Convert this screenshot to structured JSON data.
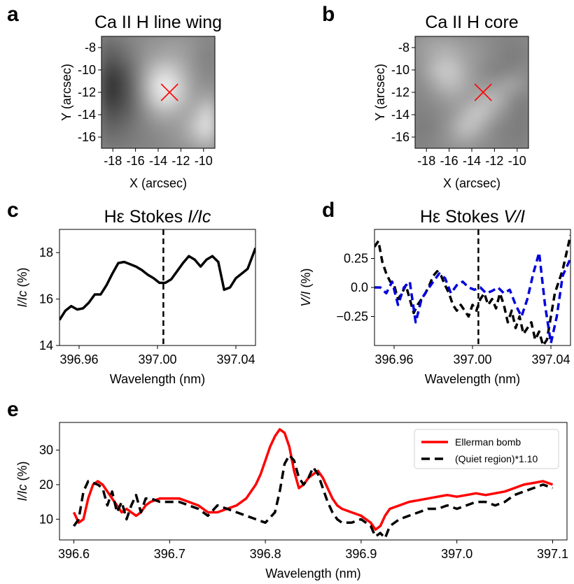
{
  "colors": {
    "red": "#ff0000",
    "blue": "#0000dd",
    "black": "#000000"
  },
  "chart_data": [
    {
      "panel": "a",
      "type": "heatmap",
      "title": "Ca II H line wing",
      "xlabel": "X (arcsec)",
      "ylabel": "Y (arcsec)",
      "xticks": [
        -18,
        -16,
        -14,
        -12,
        -10
      ],
      "yticks": [
        -8,
        -10,
        -12,
        -14,
        -16
      ],
      "xlim": [
        -19,
        -9
      ],
      "ylim": [
        -17,
        -7
      ],
      "marker": {
        "x": -13,
        "y": -12,
        "symbol": "x",
        "color": "#ff0000"
      },
      "grid": [
        [
          0.42,
          0.45,
          0.5,
          0.55,
          0.58,
          0.6,
          0.62,
          0.6,
          0.56,
          0.52
        ],
        [
          0.35,
          0.38,
          0.45,
          0.55,
          0.62,
          0.66,
          0.66,
          0.62,
          0.55,
          0.5
        ],
        [
          0.25,
          0.28,
          0.38,
          0.55,
          0.72,
          0.82,
          0.78,
          0.66,
          0.56,
          0.52
        ],
        [
          0.2,
          0.22,
          0.34,
          0.55,
          0.8,
          0.96,
          0.88,
          0.7,
          0.58,
          0.56
        ],
        [
          0.22,
          0.24,
          0.35,
          0.52,
          0.75,
          0.9,
          0.84,
          0.7,
          0.62,
          0.68
        ],
        [
          0.3,
          0.32,
          0.38,
          0.5,
          0.62,
          0.7,
          0.68,
          0.64,
          0.72,
          0.85
        ],
        [
          0.38,
          0.4,
          0.44,
          0.5,
          0.55,
          0.58,
          0.6,
          0.66,
          0.8,
          0.9
        ],
        [
          0.45,
          0.45,
          0.48,
          0.5,
          0.52,
          0.55,
          0.58,
          0.62,
          0.7,
          0.75
        ]
      ]
    },
    {
      "panel": "b",
      "type": "heatmap",
      "title": "Ca II H core",
      "xlabel": "X (arcsec)",
      "ylabel": "Y (arcsec)",
      "xticks": [
        -18,
        -16,
        -14,
        -12,
        -10
      ],
      "yticks": [
        -8,
        -10,
        -12,
        -14,
        -16
      ],
      "xlim": [
        -19,
        -9
      ],
      "ylim": [
        -17,
        -7
      ],
      "marker": {
        "x": -13,
        "y": -12,
        "symbol": "x",
        "color": "#ff0000"
      },
      "grid": [
        [
          0.62,
          0.64,
          0.66,
          0.64,
          0.6,
          0.58,
          0.55,
          0.52,
          0.5,
          0.52
        ],
        [
          0.6,
          0.66,
          0.72,
          0.7,
          0.64,
          0.6,
          0.55,
          0.52,
          0.48,
          0.5
        ],
        [
          0.58,
          0.7,
          0.8,
          0.78,
          0.66,
          0.58,
          0.52,
          0.5,
          0.52,
          0.55
        ],
        [
          0.55,
          0.62,
          0.72,
          0.74,
          0.66,
          0.6,
          0.58,
          0.62,
          0.66,
          0.58
        ],
        [
          0.52,
          0.56,
          0.6,
          0.64,
          0.62,
          0.66,
          0.74,
          0.7,
          0.56,
          0.5
        ],
        [
          0.5,
          0.52,
          0.55,
          0.6,
          0.7,
          0.8,
          0.72,
          0.6,
          0.52,
          0.48
        ],
        [
          0.48,
          0.5,
          0.55,
          0.65,
          0.78,
          0.72,
          0.6,
          0.52,
          0.5,
          0.48
        ],
        [
          0.5,
          0.52,
          0.56,
          0.62,
          0.65,
          0.6,
          0.55,
          0.52,
          0.5,
          0.5
        ]
      ]
    },
    {
      "panel": "c",
      "type": "line",
      "title_prefix": "Hε Stokes ",
      "title_italic": "I/Ic",
      "xlabel": "Wavelength (nm)",
      "ylabel_italic": "I/Ic",
      "ylabel_suffix": " (%)",
      "xlim": [
        396.95,
        397.05
      ],
      "ylim": [
        14,
        19
      ],
      "xticks": [
        396.96,
        397.0,
        397.04
      ],
      "xtick_labels": [
        "396.96",
        "397.00",
        "397.04"
      ],
      "yticks": [
        14,
        16,
        18
      ],
      "vline": 397.003,
      "series": [
        {
          "color": "#000000",
          "style": "solid",
          "x": [
            396.95,
            396.953,
            396.956,
            396.959,
            396.962,
            396.965,
            396.968,
            396.971,
            396.974,
            396.977,
            396.98,
            396.983,
            396.986,
            396.989,
            396.992,
            396.995,
            396.998,
            397.001,
            397.004,
            397.007,
            397.01,
            397.013,
            397.016,
            397.019,
            397.022,
            397.025,
            397.028,
            397.031,
            397.034,
            397.037,
            397.04,
            397.043,
            397.046,
            397.05
          ],
          "y": [
            15.1,
            15.5,
            15.7,
            15.55,
            15.6,
            15.85,
            16.2,
            16.2,
            16.6,
            17.1,
            17.55,
            17.6,
            17.5,
            17.4,
            17.25,
            17.05,
            16.9,
            16.7,
            16.7,
            16.85,
            17.2,
            17.55,
            17.85,
            17.7,
            17.4,
            17.7,
            17.85,
            17.6,
            16.4,
            16.5,
            16.9,
            17.1,
            17.3,
            18.2
          ]
        }
      ]
    },
    {
      "panel": "d",
      "type": "line",
      "title_prefix": "Hε Stokes ",
      "title_italic": "V/I",
      "xlabel": "Wavelength (nm)",
      "ylabel_italic": "V/I",
      "ylabel_suffix": " (%)",
      "xlim": [
        396.95,
        397.05
      ],
      "ylim": [
        -0.5,
        0.5
      ],
      "xticks": [
        396.96,
        397.0,
        397.04
      ],
      "xtick_labels": [
        "396.96",
        "397.00",
        "397.04"
      ],
      "yticks": [
        0.25,
        0.0,
        -0.25
      ],
      "ytick_labels": [
        "0.25",
        "0.0",
        "−0.25"
      ],
      "vline": 397.003,
      "series": [
        {
          "color": "#000000",
          "style": "dashed",
          "x": [
            396.95,
            396.952,
            396.954,
            396.956,
            396.958,
            396.96,
            396.962,
            396.964,
            396.966,
            396.968,
            396.97,
            396.972,
            396.974,
            396.976,
            396.978,
            396.98,
            396.982,
            396.984,
            396.986,
            396.988,
            396.99,
            396.992,
            396.994,
            396.996,
            396.998,
            397.0,
            397.002,
            397.004,
            397.006,
            397.008,
            397.01,
            397.012,
            397.014,
            397.016,
            397.018,
            397.02,
            397.022,
            397.024,
            397.026,
            397.028,
            397.03,
            397.032,
            397.034,
            397.036,
            397.038,
            397.04,
            397.042,
            397.044,
            397.046,
            397.048,
            397.05
          ],
          "y": [
            0.35,
            0.4,
            0.22,
            0.12,
            0.05,
            0.02,
            -0.1,
            -0.05,
            0.02,
            -0.1,
            -0.22,
            -0.15,
            -0.1,
            -0.05,
            0.02,
            0.1,
            0.14,
            0.1,
            0.02,
            -0.05,
            -0.15,
            -0.2,
            -0.15,
            -0.2,
            -0.25,
            -0.15,
            -0.2,
            -0.1,
            -0.05,
            -0.15,
            -0.1,
            -0.18,
            -0.05,
            -0.15,
            -0.3,
            -0.2,
            -0.35,
            -0.25,
            -0.4,
            -0.35,
            -0.3,
            -0.45,
            -0.38,
            -0.5,
            -0.45,
            -0.25,
            -0.05,
            0.05,
            0.15,
            0.3,
            0.45
          ]
        },
        {
          "color": "#0000dd",
          "style": "dashed",
          "x": [
            396.95,
            396.953,
            396.956,
            396.959,
            396.962,
            396.965,
            396.968,
            396.971,
            396.974,
            396.977,
            396.98,
            396.983,
            396.986,
            396.989,
            396.992,
            396.995,
            396.998,
            397.001,
            397.004,
            397.007,
            397.01,
            397.013,
            397.016,
            397.019,
            397.022,
            397.025,
            397.028,
            397.031,
            397.034,
            397.037,
            397.04,
            397.043,
            397.046,
            397.05
          ],
          "y": [
            0.0,
            0.0,
            -0.05,
            0.05,
            -0.15,
            0.0,
            0.05,
            -0.3,
            -0.1,
            -0.02,
            0.05,
            0.12,
            0.08,
            -0.05,
            0.02,
            0.05,
            0.0,
            -0.02,
            0.0,
            -0.05,
            -0.03,
            0.0,
            -0.05,
            -0.02,
            -0.15,
            -0.25,
            -0.1,
            0.12,
            0.3,
            -0.15,
            -0.48,
            -0.25,
            0.1,
            0.25
          ]
        }
      ]
    },
    {
      "panel": "e",
      "type": "line",
      "xlabel": "Wavelength (nm)",
      "ylabel_italic": "I/Ic",
      "ylabel_suffix": " (%)",
      "xlim": [
        396.585,
        397.115
      ],
      "ylim": [
        4,
        38
      ],
      "xticks": [
        396.6,
        396.7,
        396.8,
        396.9,
        397.0,
        397.1
      ],
      "xtick_labels": [
        "396.6",
        "396.7",
        "396.8",
        "396.9",
        "397.0",
        "397.1"
      ],
      "yticks": [
        10,
        20,
        30
      ],
      "legend_position": "top-right",
      "series": [
        {
          "name": "Ellerman bomb",
          "color": "#ff0000",
          "style": "solid",
          "x": [
            396.6,
            396.605,
            396.61,
            396.615,
            396.62,
            396.625,
            396.63,
            396.635,
            396.64,
            396.645,
            396.65,
            396.655,
            396.66,
            396.665,
            396.67,
            396.675,
            396.68,
            396.69,
            396.7,
            396.71,
            396.72,
            396.73,
            396.74,
            396.75,
            396.76,
            396.77,
            396.78,
            396.79,
            396.795,
            396.8,
            396.805,
            396.81,
            396.815,
            396.82,
            396.825,
            396.83,
            396.835,
            396.84,
            396.845,
            396.85,
            396.855,
            396.86,
            396.865,
            396.87,
            396.875,
            396.88,
            396.89,
            396.9,
            396.91,
            396.915,
            396.92,
            396.925,
            396.93,
            396.94,
            396.95,
            396.96,
            396.97,
            396.98,
            396.99,
            397.0,
            397.01,
            397.02,
            397.03,
            397.04,
            397.05,
            397.06,
            397.07,
            397.08,
            397.09,
            397.1
          ],
          "y": [
            12,
            9,
            10,
            16,
            20,
            21,
            20,
            18,
            16,
            14,
            12,
            13,
            12,
            11,
            12,
            14,
            15,
            16,
            16,
            16,
            15,
            14,
            12,
            12,
            13,
            14,
            16,
            20,
            23,
            27,
            31,
            34,
            36,
            35,
            31,
            24,
            19,
            20,
            22,
            23,
            24,
            22,
            19,
            16,
            14,
            13,
            12,
            11,
            9,
            7,
            8,
            11,
            13,
            14,
            15,
            15.5,
            16,
            16.5,
            17,
            16.5,
            17,
            17.5,
            17,
            17.5,
            18,
            19,
            20,
            20.5,
            21,
            20
          ]
        },
        {
          "name": "(Quiet region)*1.10",
          "color": "#000000",
          "style": "dashed",
          "x": [
            396.6,
            396.605,
            396.61,
            396.615,
            396.62,
            396.625,
            396.63,
            396.635,
            396.64,
            396.645,
            396.65,
            396.655,
            396.66,
            396.665,
            396.67,
            396.675,
            396.68,
            396.69,
            396.7,
            396.71,
            396.72,
            396.73,
            396.74,
            396.75,
            396.76,
            396.77,
            396.78,
            396.79,
            396.8,
            396.81,
            396.815,
            396.82,
            396.825,
            396.83,
            396.835,
            396.84,
            396.845,
            396.85,
            396.855,
            396.86,
            396.865,
            396.87,
            396.875,
            396.88,
            396.89,
            396.9,
            396.91,
            396.915,
            396.92,
            396.925,
            396.93,
            396.94,
            396.95,
            396.96,
            396.97,
            396.98,
            396.99,
            397.0,
            397.01,
            397.02,
            397.03,
            397.04,
            397.05,
            397.06,
            397.07,
            397.08,
            397.09,
            397.1
          ],
          "y": [
            8,
            10,
            18,
            21,
            20.5,
            20,
            19,
            14,
            18,
            12,
            15,
            10,
            14,
            17,
            12,
            16,
            16,
            15,
            15,
            15,
            14,
            13,
            11,
            14,
            13,
            12,
            11,
            10,
            9,
            12,
            18,
            26,
            28.5,
            27,
            22,
            20,
            22,
            25,
            23,
            19,
            15,
            12,
            10,
            9,
            9,
            10,
            8,
            5,
            6,
            4.5,
            8,
            10,
            11,
            12,
            13,
            13,
            14,
            13,
            14,
            15,
            15,
            14,
            15,
            17,
            18,
            19,
            20,
            19
          ]
        }
      ]
    }
  ]
}
